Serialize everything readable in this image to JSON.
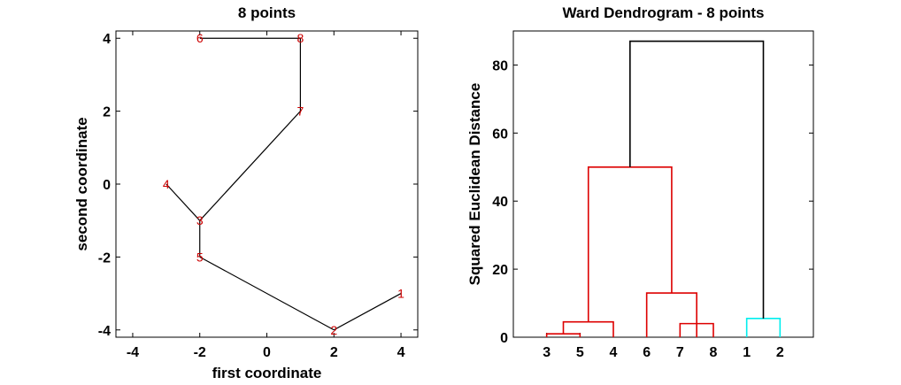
{
  "chart_data": [
    {
      "type": "line",
      "title": "8 points",
      "xlabel": "first coordinate",
      "ylabel": "second coordinate",
      "xlim": [
        -4.5,
        4.5
      ],
      "ylim": [
        -4.2,
        4.2
      ],
      "xticks": [
        -4,
        -2,
        0,
        2,
        4
      ],
      "yticks": [
        -4,
        -2,
        0,
        2,
        4
      ],
      "xtick_labels": [
        "-4",
        "-2",
        "0",
        "2",
        "4"
      ],
      "ytick_labels": [
        "-4",
        "-2",
        "0",
        "2",
        "4"
      ],
      "points": [
        {
          "label": "1",
          "x": 4,
          "y": -3
        },
        {
          "label": "2",
          "x": 2,
          "y": -4
        },
        {
          "label": "3",
          "x": -2,
          "y": -1
        },
        {
          "label": "4",
          "x": -3,
          "y": 0
        },
        {
          "label": "5",
          "x": -2,
          "y": -2
        },
        {
          "label": "6",
          "x": -2,
          "y": 4
        },
        {
          "label": "7",
          "x": 1,
          "y": 2
        },
        {
          "label": "8",
          "x": 1,
          "y": 4
        }
      ],
      "edges": [
        [
          "6",
          "8"
        ],
        [
          "8",
          "7"
        ],
        [
          "7",
          "3"
        ],
        [
          "4",
          "3"
        ],
        [
          "3",
          "5"
        ],
        [
          "5",
          "2"
        ],
        [
          "2",
          "1"
        ]
      ],
      "line_color": "#000000",
      "label_color": "#cc0000"
    },
    {
      "type": "dendrogram",
      "title": "Ward Dendrogram - 8 points",
      "xlabel": "",
      "ylabel": "Squared Euclidean Distance",
      "ylim": [
        0,
        90
      ],
      "yticks": [
        0,
        20,
        40,
        60,
        80
      ],
      "ytick_labels": [
        "0",
        "20",
        "40",
        "60",
        "80"
      ],
      "leaf_order": [
        "3",
        "5",
        "4",
        "6",
        "7",
        "8",
        "1",
        "2"
      ],
      "links": [
        {
          "left": 1,
          "right": 2,
          "height": 1,
          "color": "#dd0000"
        },
        {
          "left": 1.5,
          "right": 3,
          "height": 4.5,
          "color": "#dd0000"
        },
        {
          "left": 5,
          "right": 6,
          "height": 4,
          "color": "#dd0000"
        },
        {
          "left": 4,
          "right": 5.5,
          "height": 13,
          "color": "#dd0000"
        },
        {
          "left": 2.25,
          "right": 4.75,
          "height": 50,
          "color": "#dd0000"
        },
        {
          "left": 7,
          "right": 8,
          "height": 5.5,
          "color": "#00eeee"
        },
        {
          "left": 3.5,
          "right": 7.5,
          "height": 87,
          "color": "#000000"
        }
      ]
    }
  ]
}
